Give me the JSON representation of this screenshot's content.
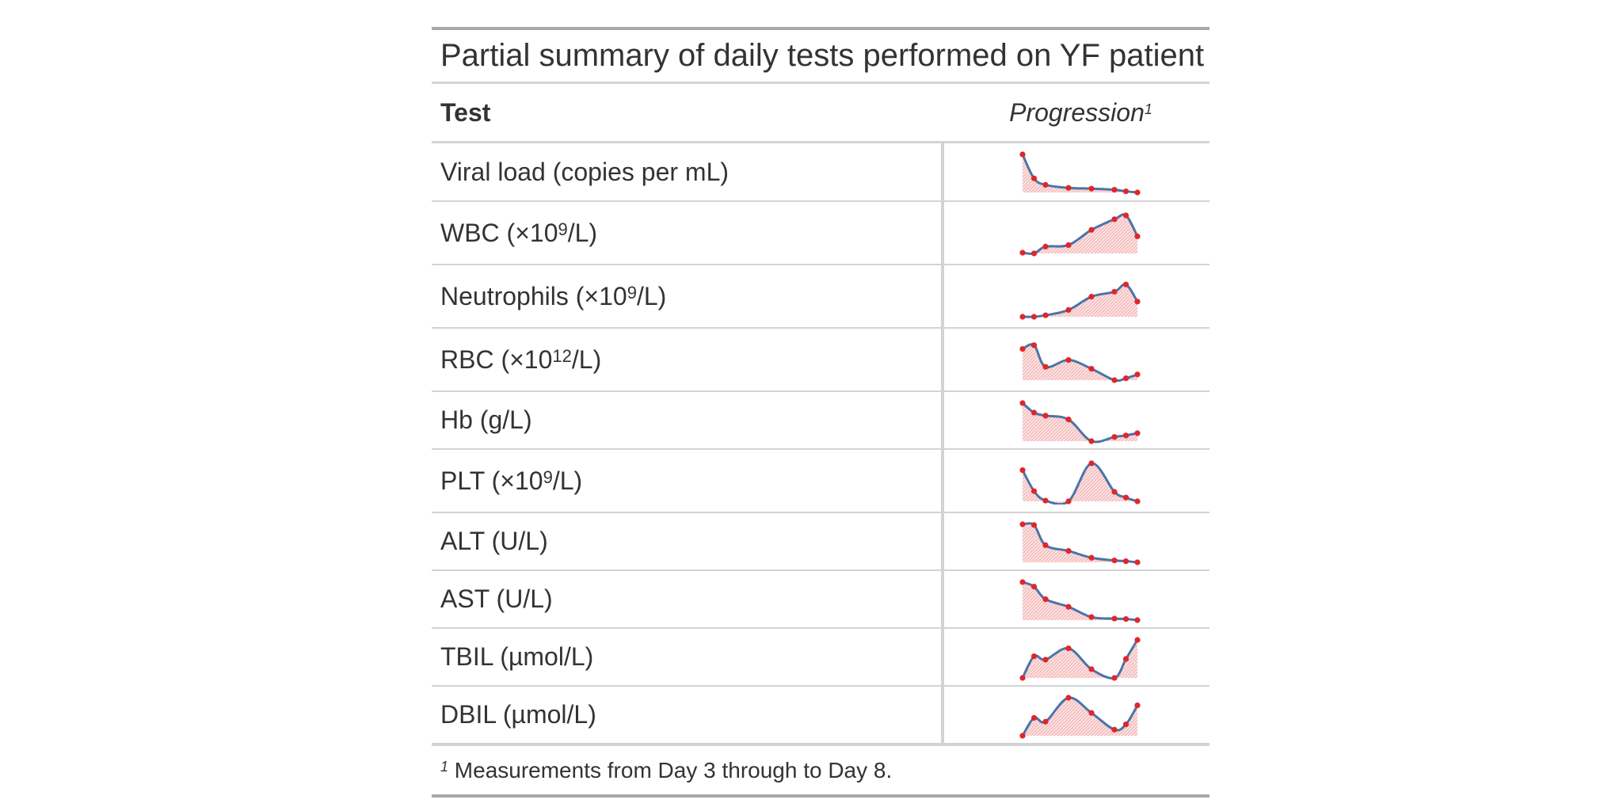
{
  "table": {
    "title": "Partial summary of daily tests performed on YF patient",
    "columns": {
      "test": "Test",
      "progression": "Progression",
      "progression_footnote_mark": "1"
    },
    "footnote": {
      "mark": "1",
      "text": "Measurements from Day 3 through to Day 8."
    },
    "rows": [
      {
        "name": "Viral load (copies per mL)",
        "base": "Viral load (copies per mL)",
        "sup": "",
        "tail": ""
      },
      {
        "name": "WBC (×10⁹/L)",
        "base": "WBC (×10",
        "sup": "9",
        "tail": "/L)"
      },
      {
        "name": "Neutrophils (×10⁹/L)",
        "base": "Neutrophils (×10",
        "sup": "9",
        "tail": "/L)"
      },
      {
        "name": "RBC (×10¹²/L)",
        "base": "RBC (×10",
        "sup": "12",
        "tail": "/L)"
      },
      {
        "name": "Hb (g/L)",
        "base": "Hb (g/L)",
        "sup": "",
        "tail": ""
      },
      {
        "name": "PLT (×10⁹/L)",
        "base": "PLT (×10",
        "sup": "9",
        "tail": "/L)"
      },
      {
        "name": "ALT (U/L)",
        "base": "ALT (U/L)",
        "sup": "",
        "tail": ""
      },
      {
        "name": "AST (U/L)",
        "base": "AST (U/L)",
        "sup": "",
        "tail": ""
      },
      {
        "name": "TBIL (µmol/L)",
        "base": "TBIL (µmol/L)",
        "sup": "",
        "tail": ""
      },
      {
        "name": "DBIL (µmol/L)",
        "base": "DBIL (µmol/L)",
        "sup": "",
        "tail": ""
      }
    ]
  },
  "chart_data": {
    "type": "line",
    "x": [
      3,
      3.5,
      4,
      5,
      6,
      7,
      7.5,
      8
    ],
    "colors": {
      "line": "#4a74a8",
      "point": "#e0262a",
      "fill": "#f4b6b6"
    },
    "series": [
      {
        "values": [
          1.0,
          0.37,
          0.2,
          0.12,
          0.1,
          0.07,
          0.03,
          0.0
        ]
      },
      {
        "values": [
          0.02,
          0.0,
          0.18,
          0.22,
          0.62,
          0.9,
          1.0,
          0.45
        ]
      },
      {
        "values": [
          0.0,
          0.0,
          0.04,
          0.18,
          0.53,
          0.66,
          0.85,
          0.4
        ]
      },
      {
        "values": [
          0.82,
          0.92,
          0.35,
          0.53,
          0.3,
          0.0,
          0.05,
          0.15
        ]
      },
      {
        "values": [
          1.0,
          0.75,
          0.67,
          0.57,
          0.0,
          0.11,
          0.15,
          0.21
        ]
      },
      {
        "values": [
          0.82,
          0.27,
          0.02,
          0.0,
          1.0,
          0.25,
          0.1,
          0.0
        ]
      },
      {
        "values": [
          1.0,
          0.98,
          0.45,
          0.3,
          0.12,
          0.05,
          0.03,
          0.0
        ]
      },
      {
        "values": [
          1.0,
          0.88,
          0.55,
          0.35,
          0.08,
          0.04,
          0.03,
          0.0
        ]
      },
      {
        "values": [
          0.0,
          0.57,
          0.48,
          0.78,
          0.23,
          0.0,
          0.5,
          1.0
        ]
      },
      {
        "values": [
          0.0,
          0.47,
          0.37,
          1.0,
          0.6,
          0.16,
          0.3,
          0.8
        ]
      }
    ]
  }
}
